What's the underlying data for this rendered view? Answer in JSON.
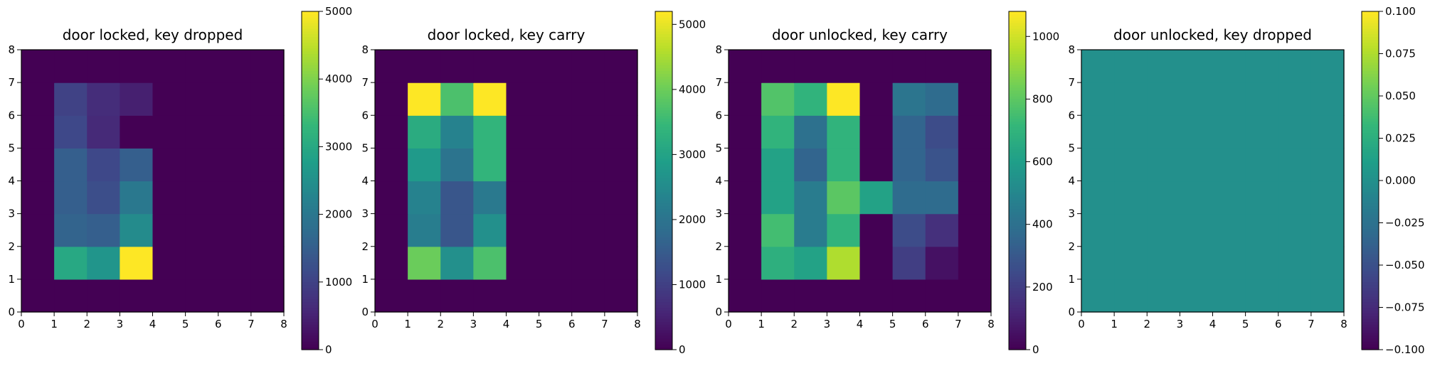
{
  "chart_data": [
    {
      "type": "heatmap",
      "title": "door locked, key dropped",
      "xlim": [
        0,
        8
      ],
      "ylim": [
        0,
        8
      ],
      "xticks": [
        "0",
        "1",
        "2",
        "3",
        "4",
        "5",
        "6",
        "7",
        "8"
      ],
      "yticks": [
        "0",
        "1",
        "2",
        "3",
        "4",
        "5",
        "6",
        "7",
        "8"
      ],
      "colorbar": {
        "min": 0,
        "max": 5000,
        "ticks": [
          0,
          1000,
          2000,
          3000,
          4000,
          5000
        ],
        "tick_labels": [
          "0",
          "1000",
          "2000",
          "3000",
          "4000",
          "5000"
        ]
      },
      "grid_origin": "bottom-left",
      "values": [
        [
          0,
          0,
          0,
          0,
          0,
          0,
          0,
          0
        ],
        [
          0,
          3000,
          2600,
          5000,
          0,
          0,
          0,
          0
        ],
        [
          0,
          1600,
          1500,
          2400,
          0,
          0,
          0,
          0
        ],
        [
          0,
          1500,
          1200,
          2000,
          0,
          0,
          0,
          0
        ],
        [
          0,
          1500,
          1100,
          1500,
          0,
          0,
          0,
          0
        ],
        [
          0,
          1100,
          600,
          0,
          0,
          0,
          0,
          0
        ],
        [
          0,
          1000,
          650,
          450,
          0,
          0,
          0,
          0
        ],
        [
          0,
          0,
          0,
          0,
          0,
          0,
          0,
          0
        ]
      ]
    },
    {
      "type": "heatmap",
      "title": "door locked, key carry",
      "xlim": [
        0,
        8
      ],
      "ylim": [
        0,
        8
      ],
      "xticks": [
        "0",
        "1",
        "2",
        "3",
        "4",
        "5",
        "6",
        "7",
        "8"
      ],
      "yticks": [
        "0",
        "1",
        "2",
        "3",
        "4",
        "5",
        "6",
        "7",
        "8"
      ],
      "colorbar": {
        "min": 0,
        "max": 5200,
        "ticks": [
          0,
          1000,
          2000,
          3000,
          4000,
          5000
        ],
        "tick_labels": [
          "0",
          "1000",
          "2000",
          "3000",
          "4000",
          "5000"
        ]
      },
      "grid_origin": "bottom-left",
      "values": [
        [
          0,
          0,
          0,
          0,
          0,
          0,
          0,
          0
        ],
        [
          0,
          4000,
          2600,
          3700,
          0,
          0,
          0,
          0
        ],
        [
          0,
          2200,
          1400,
          2600,
          0,
          0,
          0,
          0
        ],
        [
          0,
          2300,
          1400,
          2100,
          0,
          0,
          0,
          0
        ],
        [
          0,
          2800,
          2000,
          3400,
          0,
          0,
          0,
          0
        ],
        [
          0,
          3200,
          2300,
          3400,
          0,
          0,
          0,
          0
        ],
        [
          0,
          5200,
          3700,
          5200,
          0,
          0,
          0,
          0
        ],
        [
          0,
          0,
          0,
          0,
          0,
          0,
          0,
          0
        ]
      ]
    },
    {
      "type": "heatmap",
      "title": "door unlocked, key carry",
      "xlim": [
        0,
        8
      ],
      "ylim": [
        0,
        8
      ],
      "xticks": [
        "0",
        "1",
        "2",
        "3",
        "4",
        "5",
        "6",
        "7",
        "8"
      ],
      "yticks": [
        "0",
        "1",
        "2",
        "3",
        "4",
        "5",
        "6",
        "7",
        "8"
      ],
      "colorbar": {
        "min": 0,
        "max": 1080,
        "ticks": [
          0,
          200,
          400,
          600,
          800,
          1000
        ],
        "tick_labels": [
          "0",
          "200",
          "400",
          "600",
          "800",
          "1000"
        ]
      },
      "grid_origin": "bottom-left",
      "values": [
        [
          0,
          0,
          0,
          0,
          0,
          0,
          0,
          0
        ],
        [
          0,
          680,
          620,
          950,
          0,
          200,
          50,
          0
        ],
        [
          0,
          750,
          450,
          700,
          0,
          250,
          150,
          0
        ],
        [
          0,
          620,
          450,
          800,
          620,
          380,
          380,
          0
        ],
        [
          0,
          620,
          350,
          700,
          0,
          350,
          280,
          0
        ],
        [
          0,
          700,
          400,
          700,
          0,
          350,
          250,
          0
        ],
        [
          0,
          780,
          700,
          1080,
          0,
          420,
          380,
          0
        ],
        [
          0,
          0,
          0,
          0,
          0,
          0,
          0,
          0
        ]
      ]
    },
    {
      "type": "heatmap",
      "title": "door unlocked, key dropped",
      "xlim": [
        0,
        8
      ],
      "ylim": [
        0,
        8
      ],
      "xticks": [
        "0",
        "1",
        "2",
        "3",
        "4",
        "5",
        "6",
        "7",
        "8"
      ],
      "yticks": [
        "0",
        "1",
        "2",
        "3",
        "4",
        "5",
        "6",
        "7",
        "8"
      ],
      "colorbar": {
        "min": -0.1,
        "max": 0.1,
        "ticks": [
          -0.1,
          -0.075,
          -0.05,
          -0.025,
          0,
          0.025,
          0.05,
          0.075,
          0.1
        ],
        "tick_labels": [
          "−0.100",
          "−0.075",
          "−0.050",
          "−0.025",
          "0.000",
          "0.025",
          "0.050",
          "0.075",
          "0.100"
        ]
      },
      "grid_origin": "bottom-left",
      "values": [
        [
          0,
          0,
          0,
          0,
          0,
          0,
          0,
          0
        ],
        [
          0,
          0,
          0,
          0,
          0,
          0,
          0,
          0
        ],
        [
          0,
          0,
          0,
          0,
          0,
          0,
          0,
          0
        ],
        [
          0,
          0,
          0,
          0,
          0,
          0,
          0,
          0
        ],
        [
          0,
          0,
          0,
          0,
          0,
          0,
          0,
          0
        ],
        [
          0,
          0,
          0,
          0,
          0,
          0,
          0,
          0
        ],
        [
          0,
          0,
          0,
          0,
          0,
          0,
          0,
          0
        ],
        [
          0,
          0,
          0,
          0,
          0,
          0,
          0,
          0
        ]
      ]
    }
  ]
}
